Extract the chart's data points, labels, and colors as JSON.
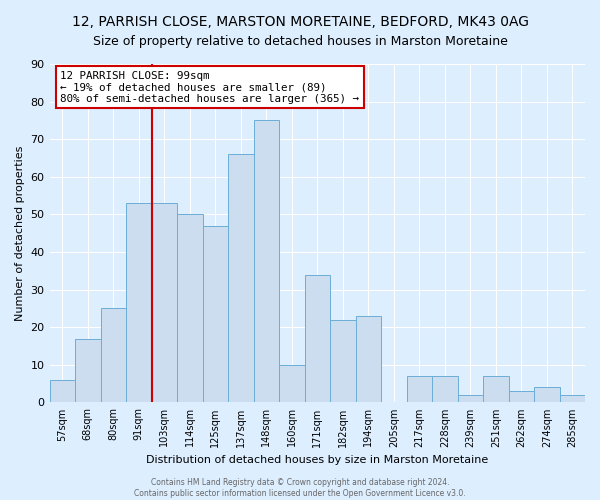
{
  "title": "12, PARRISH CLOSE, MARSTON MORETAINE, BEDFORD, MK43 0AG",
  "subtitle": "Size of property relative to detached houses in Marston Moretaine",
  "xlabel": "Distribution of detached houses by size in Marston Moretaine",
  "ylabel": "Number of detached properties",
  "bin_labels": [
    "57sqm",
    "68sqm",
    "80sqm",
    "91sqm",
    "103sqm",
    "114sqm",
    "125sqm",
    "137sqm",
    "148sqm",
    "160sqm",
    "171sqm",
    "182sqm",
    "194sqm",
    "205sqm",
    "217sqm",
    "228sqm",
    "239sqm",
    "251sqm",
    "262sqm",
    "274sqm",
    "285sqm"
  ],
  "bar_values": [
    6,
    17,
    25,
    53,
    53,
    50,
    47,
    66,
    75,
    10,
    34,
    22,
    23,
    0,
    7,
    7,
    2,
    7,
    3,
    4,
    2
  ],
  "bar_color": "#ccddf0",
  "bar_edge_color": "#6baed6",
  "marker_line_x_label": "103sqm",
  "marker_label": "12 PARRISH CLOSE: 99sqm",
  "annotation_line1": "← 19% of detached houses are smaller (89)",
  "annotation_line2": "80% of semi-detached houses are larger (365) →",
  "annotation_box_color": "#ffffff",
  "annotation_box_edge": "#cc0000",
  "marker_line_color": "#cc0000",
  "ylim": [
    0,
    90
  ],
  "yticks": [
    0,
    10,
    20,
    30,
    40,
    50,
    60,
    70,
    80,
    90
  ],
  "footer1": "Contains HM Land Registry data © Crown copyright and database right 2024.",
  "footer2": "Contains public sector information licensed under the Open Government Licence v3.0.",
  "background_color": "#ddeeff",
  "plot_bg_color": "#ddeeff",
  "grid_color": "#ffffff",
  "title_fontsize": 10,
  "subtitle_fontsize": 9
}
